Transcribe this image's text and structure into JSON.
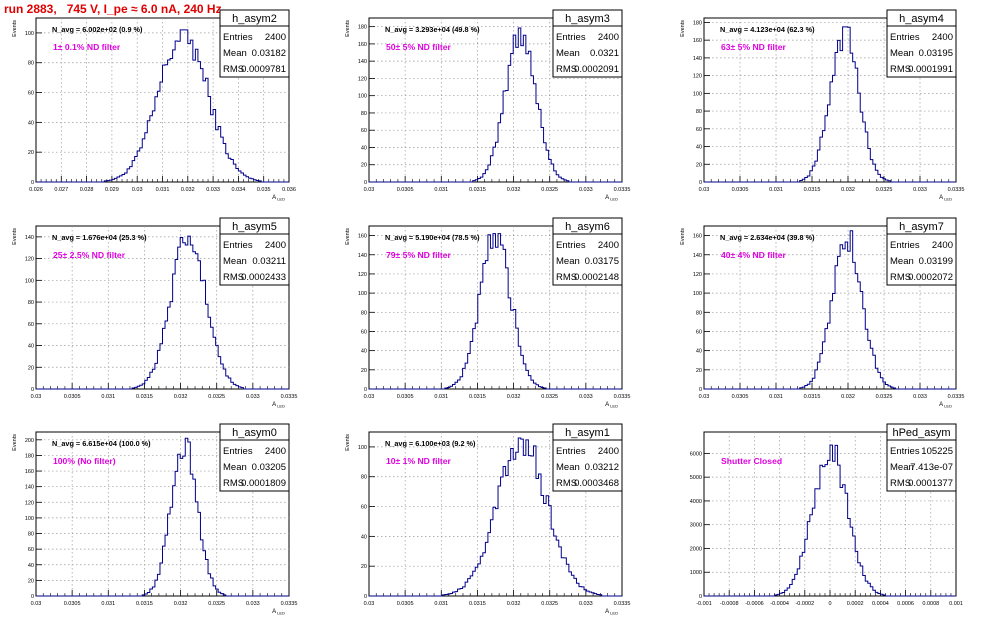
{
  "header": {
    "title": "run 2883,   745 V, I_pe ≈ 6.0 nA, 240 Hz"
  },
  "colors": {
    "title": "#e00000",
    "annotation": "#e000e0",
    "histogram": "#00008b",
    "grid": "#9a9a9a"
  },
  "chart_data": [
    {
      "type": "histogram",
      "name": "h_asym2",
      "stats": {
        "entries_label": "Entries",
        "entries": "2400",
        "mean_label": "Mean",
        "mean": "0.03182",
        "rms_label": "RMS",
        "rms": "0.0009781"
      },
      "navg": "N_avg = 6.002e+02 (0.9 %)",
      "annotation": "1± 0.1% ND filter",
      "xlabel": "A_LED",
      "ylabel": "Events",
      "xlim": [
        0.026,
        0.036
      ],
      "ylim": [
        0,
        110
      ],
      "xticks": [
        "0.026",
        "0.027",
        "0.028",
        "0.029",
        "0.03",
        "0.031",
        "0.032",
        "0.033",
        "0.034",
        "0.035",
        "0.036"
      ],
      "yticks": [
        "0",
        "20",
        "40",
        "60",
        "80",
        "100"
      ],
      "ytick_values": [
        0,
        20,
        40,
        60,
        80,
        100
      ],
      "grid": true,
      "mean_value": 0.03182,
      "rms_value": 0.0009781,
      "peak_value": 102
    },
    {
      "type": "histogram",
      "name": "h_asym3",
      "stats": {
        "entries_label": "Entries",
        "entries": "2400",
        "mean_label": "Mean",
        "mean": "0.0321",
        "rms_label": "RMS",
        "rms": "0.0002091"
      },
      "navg": "N_avg = 3.293e+04 (49.8 %)",
      "annotation": "50± 5% ND filter",
      "xlabel": "A_LED",
      "ylabel": "Events",
      "xlim": [
        0.03,
        0.0335
      ],
      "ylim": [
        0,
        190
      ],
      "xticks": [
        "0.03",
        "0.0305",
        "0.031",
        "0.0315",
        "0.032",
        "0.0325",
        "0.033",
        "0.0335"
      ],
      "yticks": [
        "0",
        "20",
        "40",
        "60",
        "80",
        "100",
        "120",
        "140",
        "160",
        "180"
      ],
      "ytick_values": [
        0,
        20,
        40,
        60,
        80,
        100,
        120,
        140,
        160,
        180
      ],
      "grid": true,
      "mean_value": 0.0321,
      "rms_value": 0.0002091,
      "peak_value": 180
    },
    {
      "type": "histogram",
      "name": "h_asym4",
      "stats": {
        "entries_label": "Entries",
        "entries": "2400",
        "mean_label": "Mean",
        "mean": "0.03195",
        "rms_label": "RMS",
        "rms": "0.0001991"
      },
      "navg": "N_avg = 4.123e+04 (62.3 %)",
      "annotation": "63± 5% ND filter",
      "xlabel": "A_LED",
      "ylabel": "Events",
      "xlim": [
        0.03,
        0.0335
      ],
      "ylim": [
        0,
        185
      ],
      "xticks": [
        "0.03",
        "0.0305",
        "0.031",
        "0.0315",
        "0.032",
        "0.0325",
        "0.033",
        "0.0335"
      ],
      "yticks": [
        "0",
        "20",
        "40",
        "60",
        "80",
        "100",
        "120",
        "140",
        "160",
        "180"
      ],
      "ytick_values": [
        0,
        20,
        40,
        60,
        80,
        100,
        120,
        140,
        160,
        180
      ],
      "grid": true,
      "mean_value": 0.03195,
      "rms_value": 0.0001991,
      "peak_value": 175
    },
    {
      "type": "histogram",
      "name": "h_asym5",
      "stats": {
        "entries_label": "Entries",
        "entries": "2400",
        "mean_label": "Mean",
        "mean": "0.03211",
        "rms_label": "RMS",
        "rms": "0.0002433"
      },
      "navg": "N_avg = 1.676e+04 (25.3 %)",
      "annotation": "25± 2.5% ND filter",
      "xlabel": "A_LED",
      "ylabel": "Events",
      "xlim": [
        0.03,
        0.0335
      ],
      "ylim": [
        0,
        150
      ],
      "xticks": [
        "0.03",
        "0.0305",
        "0.031",
        "0.0315",
        "0.032",
        "0.0325",
        "0.033",
        "0.0335"
      ],
      "yticks": [
        "0",
        "20",
        "40",
        "60",
        "80",
        "100",
        "120",
        "140"
      ],
      "ytick_values": [
        0,
        20,
        40,
        60,
        80,
        100,
        120,
        140
      ],
      "grid": true,
      "mean_value": 0.03211,
      "rms_value": 0.0002433,
      "peak_value": 142
    },
    {
      "type": "histogram",
      "name": "h_asym6",
      "stats": {
        "entries_label": "Entries",
        "entries": "2400",
        "mean_label": "Mean",
        "mean": "0.03175",
        "rms_label": "RMS",
        "rms": "0.0002148"
      },
      "navg": "N_avg = 5.190e+04 (78.5 %)",
      "annotation": "79± 5% ND filter",
      "xlabel": "A_LED",
      "ylabel": "Events",
      "xlim": [
        0.03,
        0.0335
      ],
      "ylim": [
        0,
        170
      ],
      "xticks": [
        "0.03",
        "0.0305",
        "0.031",
        "0.0315",
        "0.032",
        "0.0325",
        "0.033",
        "0.0335"
      ],
      "yticks": [
        "0",
        "20",
        "40",
        "60",
        "80",
        "100",
        "120",
        "140",
        "160"
      ],
      "ytick_values": [
        0,
        20,
        40,
        60,
        80,
        100,
        120,
        140,
        160
      ],
      "grid": true,
      "mean_value": 0.03175,
      "rms_value": 0.0002148,
      "peak_value": 162
    },
    {
      "type": "histogram",
      "name": "h_asym7",
      "stats": {
        "entries_label": "Entries",
        "entries": "2400",
        "mean_label": "Mean",
        "mean": "0.03199",
        "rms_label": "RMS",
        "rms": "0.0002072"
      },
      "navg": "N_avg = 2.634e+04 (39.8 %)",
      "annotation": "40± 4% ND filter",
      "xlabel": "A_LED",
      "ylabel": "Events",
      "xlim": [
        0.03,
        0.0335
      ],
      "ylim": [
        0,
        170
      ],
      "xticks": [
        "0.03",
        "0.0305",
        "0.031",
        "0.0315",
        "0.032",
        "0.0325",
        "0.033",
        "0.0335"
      ],
      "yticks": [
        "0",
        "20",
        "40",
        "60",
        "80",
        "100",
        "120",
        "140",
        "160"
      ],
      "ytick_values": [
        0,
        20,
        40,
        60,
        80,
        100,
        120,
        140,
        160
      ],
      "grid": true,
      "mean_value": 0.03199,
      "rms_value": 0.0002072,
      "peak_value": 165
    },
    {
      "type": "histogram",
      "name": "h_asym0",
      "stats": {
        "entries_label": "Entries",
        "entries": "2400",
        "mean_label": "Mean",
        "mean": "0.03205",
        "rms_label": "RMS",
        "rms": "0.0001809"
      },
      "navg": "N_avg = 6.615e+04 (100.0 %)",
      "annotation": "100% (No filter)",
      "xlabel": "A_LED",
      "ylabel": "Events",
      "xlim": [
        0.03,
        0.0335
      ],
      "ylim": [
        0,
        210
      ],
      "xticks": [
        "0.03",
        "0.0305",
        "0.031",
        "0.0315",
        "0.032",
        "0.0325",
        "0.033",
        "0.0335"
      ],
      "yticks": [
        "0",
        "20",
        "40",
        "60",
        "80",
        "100",
        "120",
        "140",
        "160",
        "180",
        "200"
      ],
      "ytick_values": [
        0,
        20,
        40,
        60,
        80,
        100,
        120,
        140,
        160,
        180,
        200
      ],
      "grid": true,
      "mean_value": 0.03205,
      "rms_value": 0.0001809,
      "peak_value": 202
    },
    {
      "type": "histogram",
      "name": "h_asym1",
      "stats": {
        "entries_label": "Entries",
        "entries": "2400",
        "mean_label": "Mean",
        "mean": "0.03212",
        "rms_label": "RMS",
        "rms": "0.0003468"
      },
      "navg": "N_avg = 6.100e+03 (9.2 %)",
      "annotation": "10± 1% ND filter",
      "xlabel": "A_LED",
      "ylabel": "Events",
      "xlim": [
        0.03,
        0.0335
      ],
      "ylim": [
        0,
        110
      ],
      "xticks": [
        "0.03",
        "0.0305",
        "0.031",
        "0.0315",
        "0.032",
        "0.0325",
        "0.033",
        "0.0335"
      ],
      "yticks": [
        "0",
        "20",
        "40",
        "60",
        "80",
        "100"
      ],
      "ytick_values": [
        0,
        20,
        40,
        60,
        80,
        100
      ],
      "grid": true,
      "mean_value": 0.03212,
      "rms_value": 0.0003468,
      "peak_value": 106
    },
    {
      "type": "histogram",
      "name": "hPed_asym",
      "stats": {
        "entries_label": "Entries",
        "entries": "105225",
        "mean_label": "Mean",
        "mean": "7.413e-07",
        "rms_label": "RMS",
        "rms": "0.0001377"
      },
      "navg": "",
      "annotation": "Shutter Closed",
      "xlabel": "",
      "ylabel": "",
      "xlim": [
        -0.001,
        0.001
      ],
      "ylim": [
        0,
        6900
      ],
      "xticks": [
        "-0.001",
        "-0.0008",
        "-0.0006",
        "-0.0004",
        "-0.0002",
        "0",
        "0.0002",
        "0.0004",
        "0.0006",
        "0.0008",
        "0.001"
      ],
      "yticks": [
        "0",
        "1000",
        "2000",
        "3000",
        "4000",
        "5000",
        "6000"
      ],
      "ytick_values": [
        0,
        1000,
        2000,
        3000,
        4000,
        5000,
        6000
      ],
      "grid": true,
      "mean_value": 7.413e-07,
      "rms_value": 0.0001377,
      "peak_value": 6350
    }
  ]
}
